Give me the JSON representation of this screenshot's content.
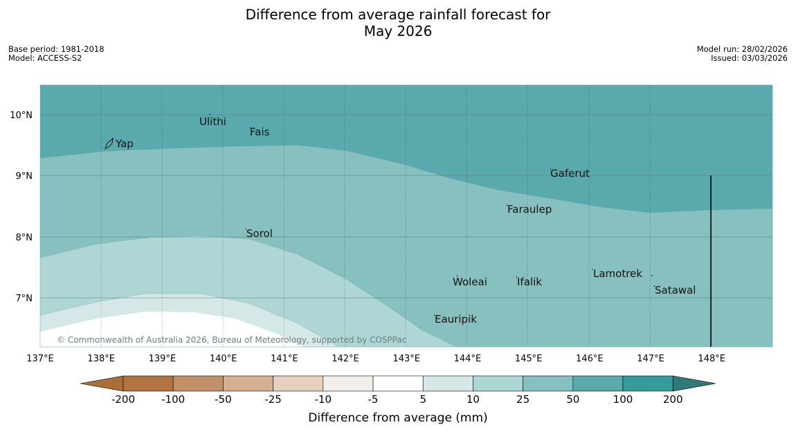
{
  "title": {
    "line1": "Difference from average rainfall forecast for",
    "line2": "May 2026"
  },
  "meta": {
    "base_period": "Base period: 1981-2018",
    "model": "Model: ACCESS-S2",
    "model_run": "Model run: 28/02/2026",
    "issued": "Issued: 03/03/2026"
  },
  "map": {
    "x_ticks": [
      "137°E",
      "138°E",
      "139°E",
      "140°E",
      "141°E",
      "142°E",
      "143°E",
      "144°E",
      "145°E",
      "146°E",
      "147°E",
      "148°E"
    ],
    "y_ticks": [
      "10°N",
      "9°N",
      "8°N",
      "7°N"
    ],
    "places": [
      "Ulithi",
      "Fais",
      "Yap",
      "Gaferut",
      "Faraulep",
      "Sorol",
      "Lamotrek",
      "Woleai",
      "Ifalik",
      "Satawal",
      "Eauripik"
    ],
    "copyright": "© Commonwealth of Australia 2026, Bureau of Meteorology, supported by COSPPac"
  },
  "colorbar": {
    "bins": [
      {
        "color": "#a86f36"
      },
      {
        "color": "#b07540"
      },
      {
        "color": "#c09068"
      },
      {
        "color": "#d4b092"
      },
      {
        "color": "#e6d0c0"
      },
      {
        "color": "#f2eee9"
      },
      {
        "color": "#ffffff"
      },
      {
        "color": "#d5e8e7"
      },
      {
        "color": "#aed6d4"
      },
      {
        "color": "#86c0bf"
      },
      {
        "color": "#5aaaad"
      },
      {
        "color": "#359b9b"
      },
      {
        "color": "#317878"
      }
    ],
    "tick_labels": [
      "-200",
      "-100",
      "-50",
      "-25",
      "-10",
      "-5",
      "5",
      "10",
      "25",
      "50",
      "100",
      "200"
    ],
    "label": "Difference from average (mm)"
  }
}
